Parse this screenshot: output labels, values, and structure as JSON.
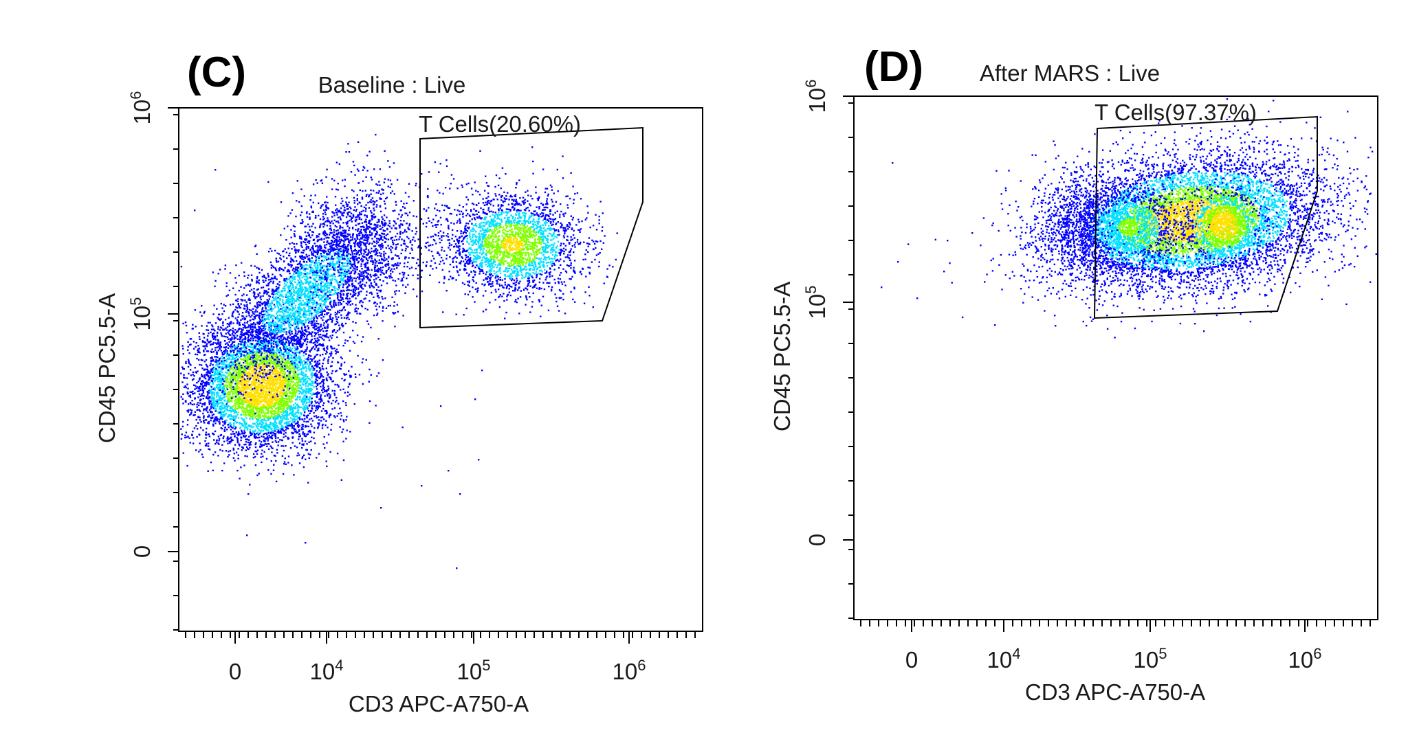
{
  "chart_data": [
    {
      "type": "scatter",
      "panel": "(C)",
      "title": "Baseline : Live",
      "xlabel": "CD3 APC-A750-A",
      "ylabel": "CD45 PC5.5-A",
      "x_ticks": [
        {
          "base": "0",
          "exp": ""
        },
        {
          "base": "10",
          "exp": "4"
        },
        {
          "base": "10",
          "exp": "5"
        },
        {
          "base": "10",
          "exp": "6"
        }
      ],
      "y_ticks": [
        {
          "base": "0",
          "exp": ""
        },
        {
          "base": "10",
          "exp": "5"
        },
        {
          "base": "10",
          "exp": "6"
        }
      ],
      "x_scale": "biexponential",
      "y_scale": "biexponential",
      "xlim": [
        -2000,
        2500000
      ],
      "ylim": [
        -20000,
        1000000
      ],
      "gate": {
        "label": "T Cells(20.60%)",
        "name": "T Cells",
        "percent": 20.6
      },
      "density_colormap": [
        "#0000ff",
        "#00e0ff",
        "#80ff00",
        "#ffe000",
        "#ff2000"
      ],
      "populations": [
        {
          "name": "CD3- CD45+ cluster",
          "center": [
            1000,
            42000
          ],
          "events": "dense"
        },
        {
          "name": "CD3 dim diagonal tail",
          "center": [
            8000,
            130000
          ],
          "events": "medium"
        },
        {
          "name": "T Cells",
          "center": [
            160000,
            250000
          ],
          "events": "medium"
        }
      ]
    },
    {
      "type": "scatter",
      "panel": "(D)",
      "title": "After MARS : Live",
      "xlabel": "CD3 APC-A750-A",
      "ylabel": "CD45 PC5.5-A",
      "x_ticks": [
        {
          "base": "0",
          "exp": ""
        },
        {
          "base": "10",
          "exp": "4"
        },
        {
          "base": "10",
          "exp": "5"
        },
        {
          "base": "10",
          "exp": "6"
        }
      ],
      "y_ticks": [
        {
          "base": "0",
          "exp": ""
        },
        {
          "base": "10",
          "exp": "5"
        },
        {
          "base": "10",
          "exp": "6"
        }
      ],
      "x_scale": "biexponential",
      "y_scale": "biexponential",
      "xlim": [
        -2000,
        2500000
      ],
      "ylim": [
        -20000,
        1000000
      ],
      "gate": {
        "label": "T Cells(97.37%)",
        "name": "T Cells",
        "percent": 97.37
      },
      "density_colormap": [
        "#0000ff",
        "#00e0ff",
        "#80ff00",
        "#ffe000",
        "#ff2000"
      ],
      "populations": [
        {
          "name": "T Cells",
          "center": [
            200000,
            270000
          ],
          "events": "dense"
        }
      ]
    }
  ]
}
